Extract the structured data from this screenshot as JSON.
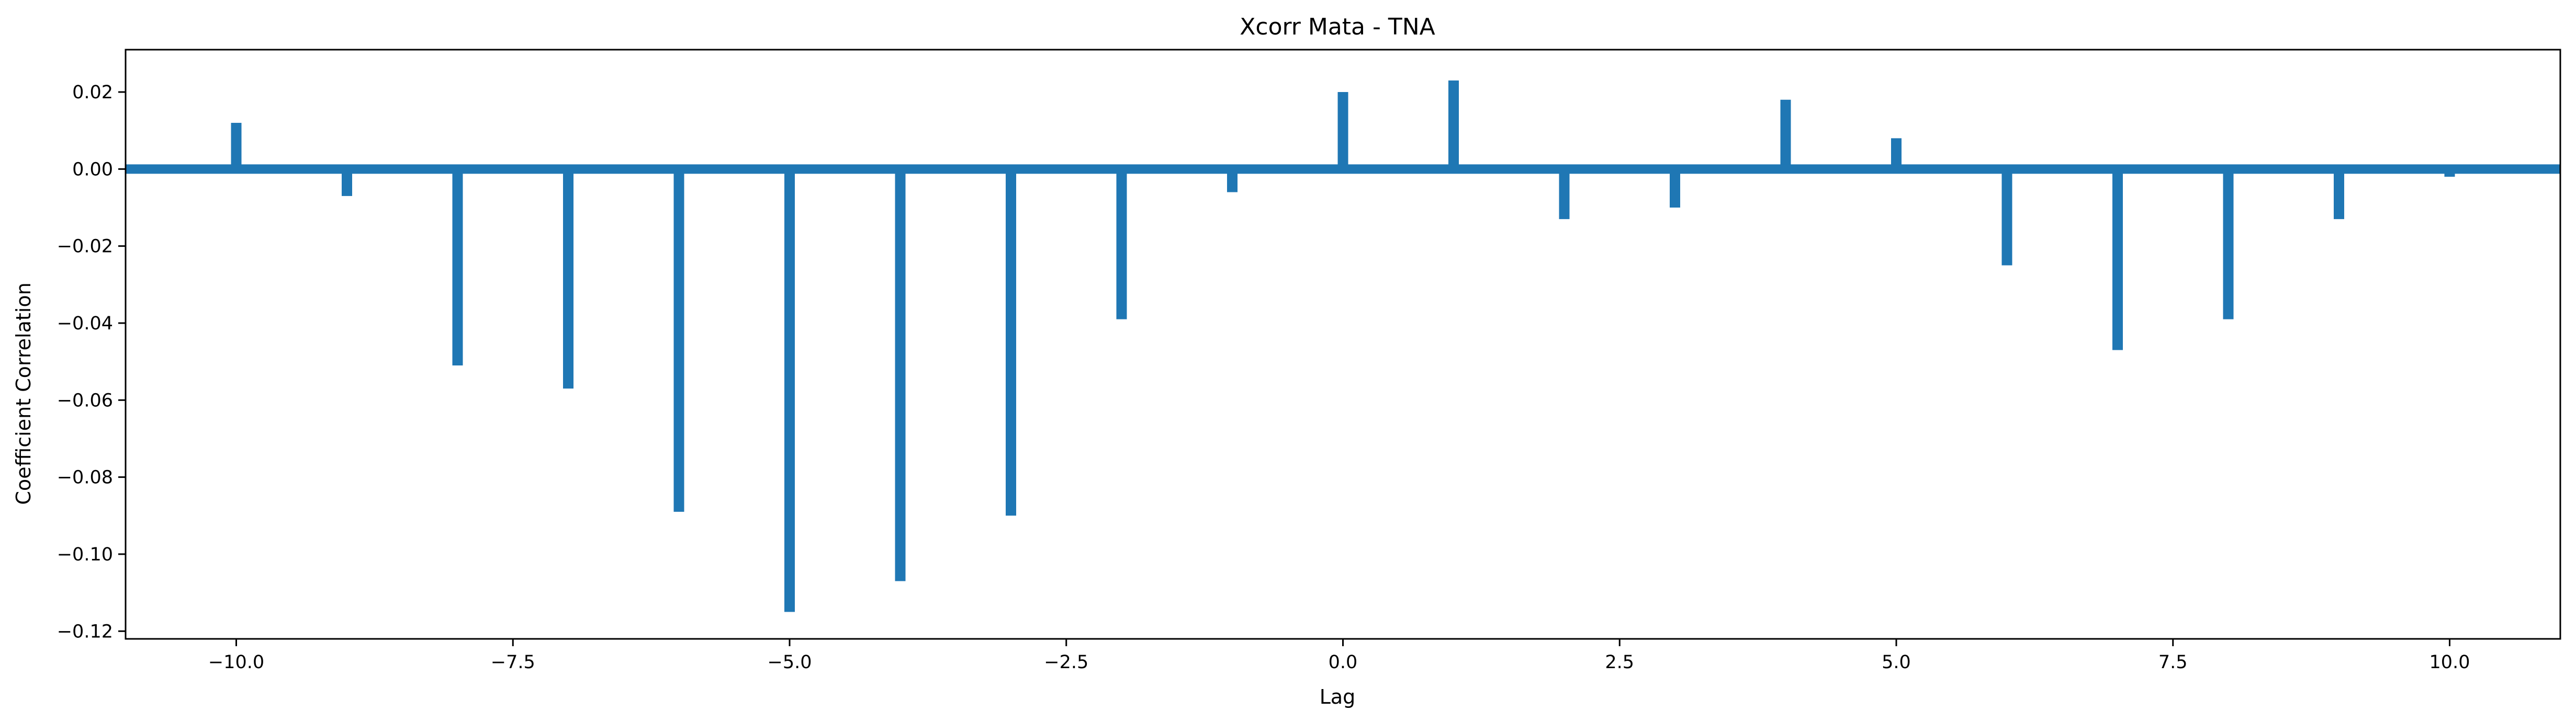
{
  "chart_data": {
    "type": "bar",
    "title": "Xcorr Mata - TNA",
    "xlabel": "Lag",
    "ylabel": "Coefficient Correlation",
    "x": [
      -10,
      -9,
      -8,
      -7,
      -6,
      -5,
      -4,
      -3,
      -2,
      -1,
      0,
      1,
      2,
      3,
      4,
      5,
      6,
      7,
      8,
      9,
      10
    ],
    "values": [
      0.012,
      -0.007,
      -0.051,
      -0.057,
      -0.089,
      -0.115,
      -0.107,
      -0.09,
      -0.039,
      -0.006,
      0.02,
      0.023,
      -0.013,
      -0.01,
      0.018,
      0.008,
      -0.025,
      -0.047,
      -0.039,
      -0.013,
      -0.002
    ],
    "xlim": [
      -11,
      11
    ],
    "ylim": [
      -0.122,
      0.031
    ],
    "xticks": [
      -10.0,
      -7.5,
      -5.0,
      -2.5,
      0.0,
      2.5,
      5.0,
      7.5,
      10.0
    ],
    "xtick_labels": [
      "−10.0",
      "−7.5",
      "−5.0",
      "−2.5",
      "0.0",
      "2.5",
      "5.0",
      "7.5",
      "10.0"
    ],
    "yticks": [
      0.02,
      0.0,
      -0.02,
      -0.04,
      -0.06,
      -0.08,
      -0.1,
      -0.12
    ],
    "ytick_labels": [
      "0.02",
      "0.00",
      "−0.02",
      "−0.04",
      "−0.06",
      "−0.08",
      "−0.10",
      "−0.12"
    ],
    "baseline": 0,
    "grid": false,
    "color": "#1f77b4"
  }
}
